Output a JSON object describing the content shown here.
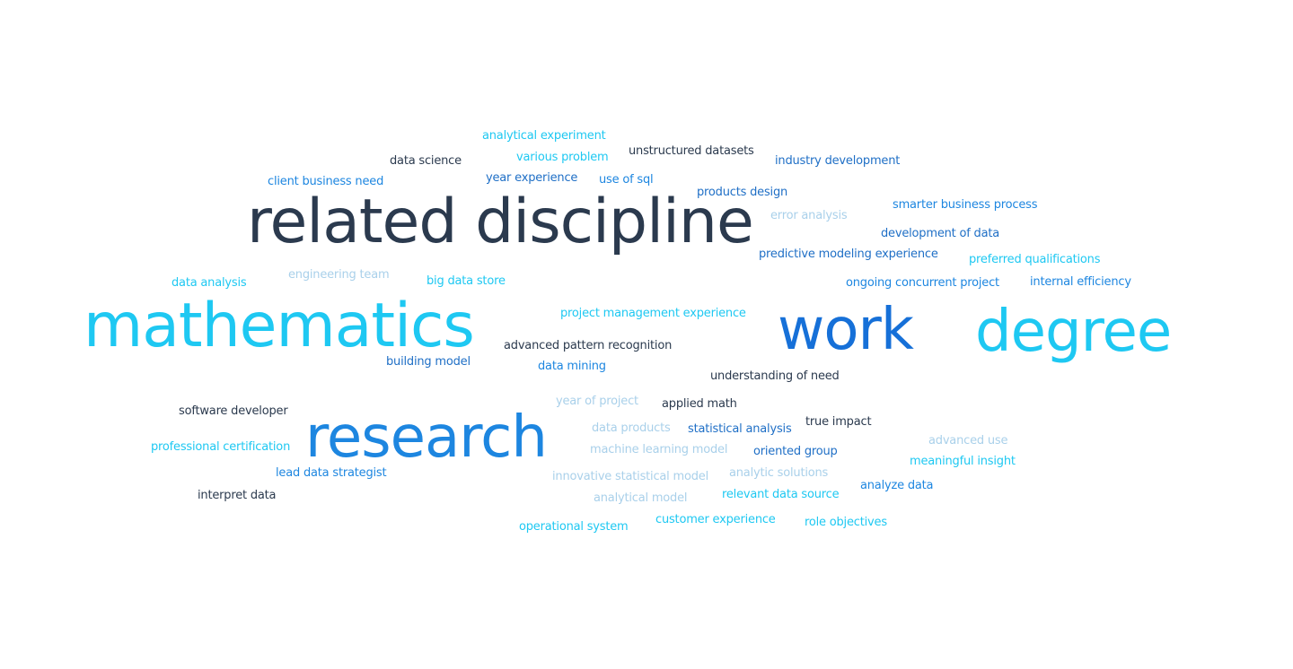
{
  "colors": {
    "dark": "#2b3a4e",
    "navy": "#1f6fc6",
    "blue": "#1d86e0",
    "cyan": "#1ec8f2",
    "light": "#a9d0ea",
    "royal": "#1670d8"
  },
  "words": [
    {
      "text": "related discipline",
      "color": "dark"
    },
    {
      "text": "mathematics",
      "color": "cyan"
    },
    {
      "text": "work",
      "color": "royal"
    },
    {
      "text": "degree",
      "color": "cyan"
    },
    {
      "text": "research",
      "color": "blue"
    },
    {
      "text": "analytical experiment",
      "color": "cyan"
    },
    {
      "text": "unstructured datasets",
      "color": "dark"
    },
    {
      "text": "various problem",
      "color": "cyan"
    },
    {
      "text": "data science",
      "color": "dark"
    },
    {
      "text": "industry development",
      "color": "navy"
    },
    {
      "text": "client business need",
      "color": "blue"
    },
    {
      "text": "year experience",
      "color": "navy"
    },
    {
      "text": "use of sql",
      "color": "blue"
    },
    {
      "text": "products design",
      "color": "navy"
    },
    {
      "text": "smarter business process",
      "color": "blue"
    },
    {
      "text": "error analysis",
      "color": "light"
    },
    {
      "text": "development of data",
      "color": "navy"
    },
    {
      "text": "predictive modeling experience",
      "color": "navy"
    },
    {
      "text": "preferred qualifications",
      "color": "cyan"
    },
    {
      "text": "data analysis",
      "color": "cyan"
    },
    {
      "text": "engineering team",
      "color": "light"
    },
    {
      "text": "big data store",
      "color": "cyan"
    },
    {
      "text": "ongoing concurrent project",
      "color": "blue"
    },
    {
      "text": "internal efficiency",
      "color": "blue"
    },
    {
      "text": "project management experience",
      "color": "cyan"
    },
    {
      "text": "advanced pattern recognition",
      "color": "dark"
    },
    {
      "text": "building model",
      "color": "navy"
    },
    {
      "text": "data mining",
      "color": "blue"
    },
    {
      "text": "understanding of need",
      "color": "dark"
    },
    {
      "text": "year of project",
      "color": "light"
    },
    {
      "text": "applied math",
      "color": "dark"
    },
    {
      "text": "software developer",
      "color": "dark"
    },
    {
      "text": "true impact",
      "color": "dark"
    },
    {
      "text": "data products",
      "color": "light"
    },
    {
      "text": "statistical analysis",
      "color": "navy"
    },
    {
      "text": "professional certification",
      "color": "cyan"
    },
    {
      "text": "machine learning model",
      "color": "light"
    },
    {
      "text": "oriented group",
      "color": "navy"
    },
    {
      "text": "advanced use",
      "color": "light"
    },
    {
      "text": "lead data strategist",
      "color": "blue"
    },
    {
      "text": "innovative statistical model",
      "color": "light"
    },
    {
      "text": "analytic solutions",
      "color": "light"
    },
    {
      "text": "meaningful insight",
      "color": "cyan"
    },
    {
      "text": "interpret data",
      "color": "dark"
    },
    {
      "text": "analytical model",
      "color": "light"
    },
    {
      "text": "relevant data source",
      "color": "cyan"
    },
    {
      "text": "analyze data",
      "color": "blue"
    },
    {
      "text": "operational system",
      "color": "cyan"
    },
    {
      "text": "customer experience",
      "color": "cyan"
    },
    {
      "text": "role objectives",
      "color": "cyan"
    }
  ]
}
